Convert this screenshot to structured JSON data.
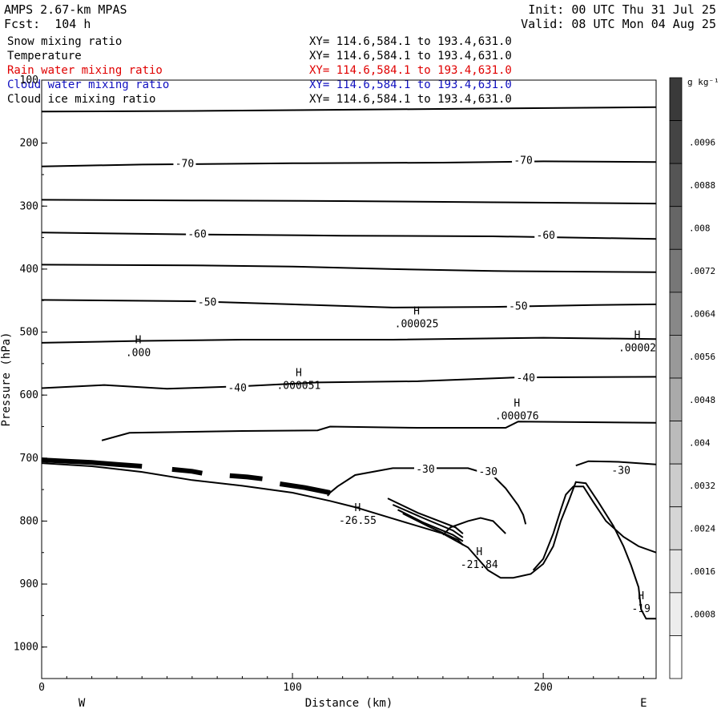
{
  "header": {
    "model": "AMPS 2.67-km MPAS",
    "forecast": "Fcst:  104 h",
    "init": "Init: 00 UTC Thu 31 Jul 25",
    "valid": "Valid: 08 UTC Mon 04 Aug 25"
  },
  "fields": [
    {
      "name": "Snow mixing ratio",
      "xy": "XY= 114.6,584.1 to 193.4,631.0",
      "color": "#000000"
    },
    {
      "name": "Temperature",
      "xy": "XY= 114.6,584.1 to 193.4,631.0",
      "color": "#000000"
    },
    {
      "name": "Rain water mixing ratio",
      "xy": "XY= 114.6,584.1 to 193.4,631.0",
      "color": "#e00000"
    },
    {
      "name": "Cloud water mixing ratio",
      "xy": "XY= 114.6,584.1 to 193.4,631.0",
      "color": "#1010c0"
    },
    {
      "name": "Cloud ice mixing ratio",
      "xy": "XY= 114.6,584.1 to 193.4,631.0",
      "color": "#000000"
    }
  ],
  "chart_data": {
    "type": "cross-section contour",
    "xlabel": "Distance (km)",
    "ylabel": "Pressure (hPa)",
    "xlim": [
      0,
      245
    ],
    "ylim": [
      1050,
      100
    ],
    "x_ticks": [
      "0",
      "100",
      "200"
    ],
    "x_tick_values": [
      0,
      100,
      200
    ],
    "y_ticks": [
      "100",
      "200",
      "300",
      "400",
      "500",
      "600",
      "700",
      "800",
      "900",
      "1000"
    ],
    "y_tick_values": [
      100,
      200,
      300,
      400,
      500,
      600,
      700,
      800,
      900,
      1000
    ],
    "direction_left": "W",
    "direction_right": "E",
    "isotherms": [
      {
        "label": "",
        "points": [
          [
            0,
            150
          ],
          [
            60,
            149
          ],
          [
            120,
            147
          ],
          [
            180,
            145
          ],
          [
            245,
            143
          ]
        ]
      },
      {
        "label": "-70",
        "label_at": [
          [
            57,
            233
          ],
          [
            192,
            228
          ]
        ],
        "points": [
          [
            0,
            237
          ],
          [
            40,
            234
          ],
          [
            100,
            232
          ],
          [
            160,
            231
          ],
          [
            200,
            229
          ],
          [
            245,
            230
          ]
        ]
      },
      {
        "label": "",
        "points": [
          [
            0,
            290
          ],
          [
            60,
            291
          ],
          [
            120,
            292
          ],
          [
            180,
            294
          ],
          [
            245,
            296
          ]
        ]
      },
      {
        "label": "-60",
        "label_at": [
          [
            62,
            345
          ],
          [
            201,
            347
          ]
        ],
        "points": [
          [
            0,
            342
          ],
          [
            60,
            345
          ],
          [
            120,
            347
          ],
          [
            180,
            348
          ],
          [
            245,
            352
          ]
        ]
      },
      {
        "label": "",
        "points": [
          [
            0,
            393
          ],
          [
            60,
            394
          ],
          [
            100,
            396
          ],
          [
            140,
            400
          ],
          [
            180,
            403
          ],
          [
            245,
            405
          ]
        ]
      },
      {
        "label": "-50",
        "label_at": [
          [
            66,
            453
          ],
          [
            190,
            459
          ]
        ],
        "points": [
          [
            0,
            449
          ],
          [
            60,
            451
          ],
          [
            100,
            456
          ],
          [
            140,
            461
          ],
          [
            180,
            460
          ],
          [
            220,
            457
          ],
          [
            245,
            456
          ]
        ]
      },
      {
        "label": "",
        "points": [
          [
            0,
            517
          ],
          [
            40,
            514
          ],
          [
            80,
            512
          ],
          [
            140,
            512
          ],
          [
            200,
            509
          ],
          [
            245,
            511
          ]
        ]
      },
      {
        "label": "-40",
        "label_at": [
          [
            78,
            589
          ],
          [
            193,
            573
          ]
        ],
        "points": [
          [
            0,
            589
          ],
          [
            25,
            584
          ],
          [
            50,
            590
          ],
          [
            80,
            586
          ],
          [
            110,
            580
          ],
          [
            150,
            578
          ],
          [
            190,
            572
          ],
          [
            245,
            571
          ]
        ]
      },
      {
        "label": "",
        "points": [
          [
            24,
            672
          ],
          [
            35,
            660
          ],
          [
            80,
            657
          ],
          [
            110,
            656
          ],
          [
            115,
            650
          ],
          [
            150,
            652
          ],
          [
            185,
            652
          ],
          [
            190,
            642
          ],
          [
            245,
            644
          ]
        ]
      },
      {
        "label": "-30",
        "label_at": [
          [
            153,
            718
          ],
          [
            178,
            722
          ],
          [
            231,
            720
          ]
        ],
        "points": [
          [
            114,
            760
          ],
          [
            115,
            755
          ],
          [
            118,
            745
          ],
          [
            125,
            727
          ],
          [
            140,
            716
          ],
          [
            170,
            716
          ],
          [
            180,
            728
          ],
          [
            185,
            748
          ],
          [
            190,
            775
          ],
          [
            192,
            790
          ],
          [
            193,
            805
          ]
        ]
      },
      {
        "label": "",
        "points": [
          [
            160,
            822
          ],
          [
            163,
            810
          ],
          [
            170,
            800
          ],
          [
            175,
            795
          ],
          [
            180,
            800
          ],
          [
            185,
            820
          ]
        ]
      },
      {
        "label": "",
        "points": [
          [
            196,
            878
          ],
          [
            200,
            860
          ],
          [
            204,
            820
          ],
          [
            207,
            782
          ],
          [
            209,
            758
          ],
          [
            212,
            745
          ],
          [
            216,
            745
          ],
          [
            220,
            770
          ],
          [
            225,
            800
          ],
          [
            232,
            825
          ],
          [
            238,
            840
          ],
          [
            245,
            850
          ]
        ]
      },
      {
        "label": "",
        "points": [
          [
            213,
            712
          ],
          [
            218,
            705
          ],
          [
            230,
            706
          ],
          [
            245,
            710
          ]
        ]
      }
    ],
    "terrain": [
      [
        0,
        708
      ],
      [
        20,
        713
      ],
      [
        40,
        722
      ],
      [
        60,
        735
      ],
      [
        80,
        744
      ],
      [
        100,
        755
      ],
      [
        115,
        768
      ],
      [
        125,
        778
      ],
      [
        140,
        796
      ],
      [
        160,
        820
      ],
      [
        170,
        842
      ],
      [
        178,
        878
      ],
      [
        183,
        890
      ],
      [
        188,
        890
      ],
      [
        195,
        884
      ],
      [
        200,
        868
      ],
      [
        204,
        840
      ],
      [
        207,
        800
      ],
      [
        210,
        770
      ],
      [
        213,
        738
      ],
      [
        217,
        740
      ],
      [
        222,
        770
      ],
      [
        228,
        808
      ],
      [
        232,
        840
      ],
      [
        235,
        870
      ],
      [
        238,
        905
      ],
      [
        239,
        940
      ],
      [
        241,
        955
      ],
      [
        245,
        955
      ]
    ],
    "thick_bands": [
      [
        [
          0,
          703
        ],
        [
          10,
          705
        ],
        [
          20,
          707
        ],
        [
          30,
          710
        ],
        [
          40,
          713
        ]
      ],
      [
        [
          52,
          718
        ],
        [
          60,
          721
        ],
        [
          64,
          724
        ]
      ],
      [
        [
          75,
          728
        ],
        [
          82,
          730
        ],
        [
          88,
          733
        ]
      ],
      [
        [
          95,
          741
        ],
        [
          105,
          747
        ],
        [
          115,
          755
        ]
      ]
    ],
    "parallel_contours": [
      [
        [
          138,
          764
        ],
        [
          150,
          787
        ],
        [
          165,
          810
        ],
        [
          168,
          820
        ]
      ],
      [
        [
          140,
          774
        ],
        [
          152,
          795
        ],
        [
          164,
          815
        ],
        [
          168,
          826
        ]
      ],
      [
        [
          142,
          782
        ],
        [
          152,
          802
        ],
        [
          164,
          822
        ],
        [
          168,
          832
        ]
      ],
      [
        [
          144,
          788
        ],
        [
          154,
          808
        ],
        [
          166,
          830
        ],
        [
          168,
          838
        ]
      ]
    ],
    "highs": [
      {
        "symbol": "H",
        "value": ".000",
        "x": 38.5,
        "p": 518
      },
      {
        "symbol": "H",
        "value": ".000051",
        "x": 102.5,
        "p": 570
      },
      {
        "symbol": "H",
        "value": ".000025",
        "x": 149.5,
        "p": 472
      },
      {
        "symbol": "H",
        "value": ".000076",
        "x": 189.5,
        "p": 618
      },
      {
        "symbol": "H",
        "value": ".00002",
        "x": 237.5,
        "p": 510
      },
      {
        "symbol": "H",
        "value": "-26.55",
        "x": 126,
        "p": 784
      },
      {
        "symbol": "H",
        "value": "-21.84",
        "x": 174.5,
        "p": 854
      },
      {
        "symbol": "H",
        "value": "-19",
        "x": 239,
        "p": 924
      }
    ],
    "colorbar": {
      "unit": "g kg⁻¹",
      "labels": [
        ".0096",
        ".0088",
        ".008",
        ".0072",
        ".0064",
        ".0056",
        ".0048",
        ".004",
        ".0032",
        ".0024",
        ".0016",
        ".0008"
      ],
      "colors": [
        "#3a3a3a",
        "#444444",
        "#555555",
        "#666666",
        "#777777",
        "#888888",
        "#999999",
        "#aaaaaa",
        "#bbbbbb",
        "#cccccc",
        "#d6d6d6",
        "#e4e4e4",
        "#ededed",
        "#ffffff"
      ]
    }
  }
}
